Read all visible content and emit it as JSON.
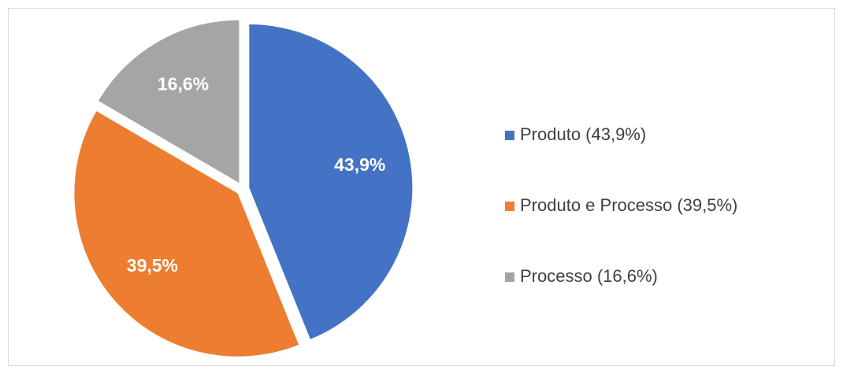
{
  "chart_data": {
    "type": "pie",
    "categories": [
      "Produto (43,9%)",
      "Produto e Processo (39,5%)",
      "Processo (16,6%)"
    ],
    "values": [
      43.9,
      39.5,
      16.6
    ],
    "value_labels": [
      "43,9%",
      "39,5%",
      "16,6%"
    ],
    "colors": [
      "#4472c4",
      "#ed7d31",
      "#a5a5a5"
    ],
    "legend": "right"
  }
}
